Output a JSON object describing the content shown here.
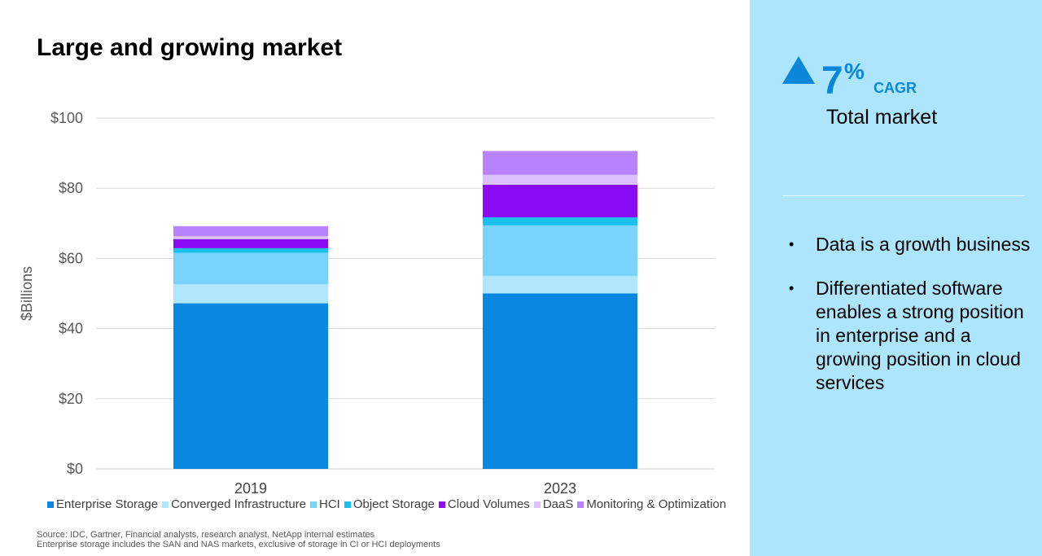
{
  "title": "Large and growing market",
  "chart_data": {
    "type": "bar",
    "stacked": true,
    "categories": [
      "2019",
      "2023"
    ],
    "ylabel": "$Billions",
    "xlabel": "",
    "ylim": [
      0,
      100
    ],
    "yticks": [
      "$0",
      "$20",
      "$40",
      "$60",
      "$80",
      "$100"
    ],
    "ytick_values": [
      0,
      20,
      40,
      60,
      80,
      100
    ],
    "grid": true,
    "legend_position": "bottom",
    "series": [
      {
        "name": "Enterprise Storage",
        "color": "#0a87e0",
        "values": [
          47.2,
          50.0
        ]
      },
      {
        "name": "Converged Infrastructure",
        "color": "#b0e6fc",
        "values": [
          5.4,
          5.0
        ]
      },
      {
        "name": "HCI",
        "color": "#79d3fc",
        "values": [
          9.0,
          14.4
        ]
      },
      {
        "name": "Object Storage",
        "color": "#1ac0f0",
        "values": [
          1.3,
          2.3
        ]
      },
      {
        "name": "Cloud Volumes",
        "color": "#8a0cf4",
        "values": [
          2.6,
          9.3
        ]
      },
      {
        "name": "DaaS",
        "color": "#dcc0fc",
        "values": [
          0.8,
          2.8
        ]
      },
      {
        "name": "Monitoring & Optimization",
        "color": "#b882fc",
        "values": [
          2.9,
          6.8
        ]
      }
    ]
  },
  "source_lines": [
    "Source: IDC, Gartner, Financial analysts, research analyst, NetApp internal estimates",
    "Enterprise storage includes the SAN and NAS markets, exclusive of storage in CI or HCI deployments"
  ],
  "side_panel": {
    "cagr_value": "7",
    "cagr_percent": "%",
    "cagr_label": "CAGR",
    "total_market": "Total market",
    "bullet_symbol": "•",
    "bullets": [
      "Data is a growth business",
      "Differentiated software enables a strong position in enterprise and a growing position in cloud services"
    ],
    "background_color": "#ade6fc",
    "accent_color": "#0a87d9"
  }
}
